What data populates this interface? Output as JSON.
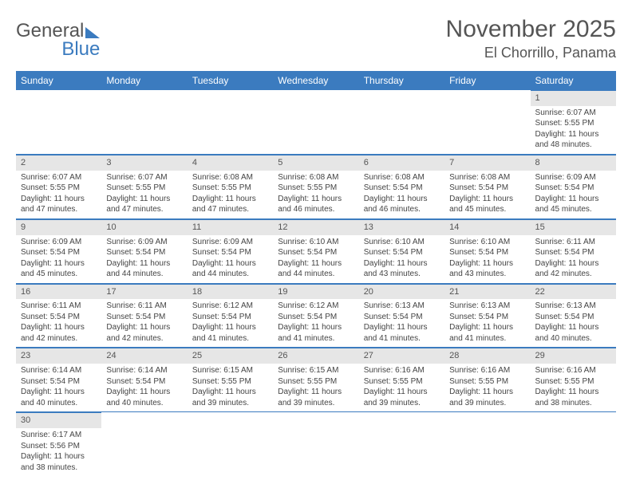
{
  "brand": {
    "part1": "General",
    "part2": "Blue"
  },
  "title": "November 2025",
  "location": "El Chorrillo, Panama",
  "headers": [
    "Sunday",
    "Monday",
    "Tuesday",
    "Wednesday",
    "Thursday",
    "Friday",
    "Saturday"
  ],
  "colors": {
    "header_bg": "#3b7bbf",
    "header_text": "#ffffff",
    "daynum_bg": "#e6e6e6",
    "border": "#3b7bbf",
    "text": "#444444"
  },
  "weeks": [
    [
      null,
      null,
      null,
      null,
      null,
      null,
      {
        "n": "1",
        "sr": "Sunrise: 6:07 AM",
        "ss": "Sunset: 5:55 PM",
        "d1": "Daylight: 11 hours",
        "d2": "and 48 minutes."
      }
    ],
    [
      {
        "n": "2",
        "sr": "Sunrise: 6:07 AM",
        "ss": "Sunset: 5:55 PM",
        "d1": "Daylight: 11 hours",
        "d2": "and 47 minutes."
      },
      {
        "n": "3",
        "sr": "Sunrise: 6:07 AM",
        "ss": "Sunset: 5:55 PM",
        "d1": "Daylight: 11 hours",
        "d2": "and 47 minutes."
      },
      {
        "n": "4",
        "sr": "Sunrise: 6:08 AM",
        "ss": "Sunset: 5:55 PM",
        "d1": "Daylight: 11 hours",
        "d2": "and 47 minutes."
      },
      {
        "n": "5",
        "sr": "Sunrise: 6:08 AM",
        "ss": "Sunset: 5:55 PM",
        "d1": "Daylight: 11 hours",
        "d2": "and 46 minutes."
      },
      {
        "n": "6",
        "sr": "Sunrise: 6:08 AM",
        "ss": "Sunset: 5:54 PM",
        "d1": "Daylight: 11 hours",
        "d2": "and 46 minutes."
      },
      {
        "n": "7",
        "sr": "Sunrise: 6:08 AM",
        "ss": "Sunset: 5:54 PM",
        "d1": "Daylight: 11 hours",
        "d2": "and 45 minutes."
      },
      {
        "n": "8",
        "sr": "Sunrise: 6:09 AM",
        "ss": "Sunset: 5:54 PM",
        "d1": "Daylight: 11 hours",
        "d2": "and 45 minutes."
      }
    ],
    [
      {
        "n": "9",
        "sr": "Sunrise: 6:09 AM",
        "ss": "Sunset: 5:54 PM",
        "d1": "Daylight: 11 hours",
        "d2": "and 45 minutes."
      },
      {
        "n": "10",
        "sr": "Sunrise: 6:09 AM",
        "ss": "Sunset: 5:54 PM",
        "d1": "Daylight: 11 hours",
        "d2": "and 44 minutes."
      },
      {
        "n": "11",
        "sr": "Sunrise: 6:09 AM",
        "ss": "Sunset: 5:54 PM",
        "d1": "Daylight: 11 hours",
        "d2": "and 44 minutes."
      },
      {
        "n": "12",
        "sr": "Sunrise: 6:10 AM",
        "ss": "Sunset: 5:54 PM",
        "d1": "Daylight: 11 hours",
        "d2": "and 44 minutes."
      },
      {
        "n": "13",
        "sr": "Sunrise: 6:10 AM",
        "ss": "Sunset: 5:54 PM",
        "d1": "Daylight: 11 hours",
        "d2": "and 43 minutes."
      },
      {
        "n": "14",
        "sr": "Sunrise: 6:10 AM",
        "ss": "Sunset: 5:54 PM",
        "d1": "Daylight: 11 hours",
        "d2": "and 43 minutes."
      },
      {
        "n": "15",
        "sr": "Sunrise: 6:11 AM",
        "ss": "Sunset: 5:54 PM",
        "d1": "Daylight: 11 hours",
        "d2": "and 42 minutes."
      }
    ],
    [
      {
        "n": "16",
        "sr": "Sunrise: 6:11 AM",
        "ss": "Sunset: 5:54 PM",
        "d1": "Daylight: 11 hours",
        "d2": "and 42 minutes."
      },
      {
        "n": "17",
        "sr": "Sunrise: 6:11 AM",
        "ss": "Sunset: 5:54 PM",
        "d1": "Daylight: 11 hours",
        "d2": "and 42 minutes."
      },
      {
        "n": "18",
        "sr": "Sunrise: 6:12 AM",
        "ss": "Sunset: 5:54 PM",
        "d1": "Daylight: 11 hours",
        "d2": "and 41 minutes."
      },
      {
        "n": "19",
        "sr": "Sunrise: 6:12 AM",
        "ss": "Sunset: 5:54 PM",
        "d1": "Daylight: 11 hours",
        "d2": "and 41 minutes."
      },
      {
        "n": "20",
        "sr": "Sunrise: 6:13 AM",
        "ss": "Sunset: 5:54 PM",
        "d1": "Daylight: 11 hours",
        "d2": "and 41 minutes."
      },
      {
        "n": "21",
        "sr": "Sunrise: 6:13 AM",
        "ss": "Sunset: 5:54 PM",
        "d1": "Daylight: 11 hours",
        "d2": "and 41 minutes."
      },
      {
        "n": "22",
        "sr": "Sunrise: 6:13 AM",
        "ss": "Sunset: 5:54 PM",
        "d1": "Daylight: 11 hours",
        "d2": "and 40 minutes."
      }
    ],
    [
      {
        "n": "23",
        "sr": "Sunrise: 6:14 AM",
        "ss": "Sunset: 5:54 PM",
        "d1": "Daylight: 11 hours",
        "d2": "and 40 minutes."
      },
      {
        "n": "24",
        "sr": "Sunrise: 6:14 AM",
        "ss": "Sunset: 5:54 PM",
        "d1": "Daylight: 11 hours",
        "d2": "and 40 minutes."
      },
      {
        "n": "25",
        "sr": "Sunrise: 6:15 AM",
        "ss": "Sunset: 5:55 PM",
        "d1": "Daylight: 11 hours",
        "d2": "and 39 minutes."
      },
      {
        "n": "26",
        "sr": "Sunrise: 6:15 AM",
        "ss": "Sunset: 5:55 PM",
        "d1": "Daylight: 11 hours",
        "d2": "and 39 minutes."
      },
      {
        "n": "27",
        "sr": "Sunrise: 6:16 AM",
        "ss": "Sunset: 5:55 PM",
        "d1": "Daylight: 11 hours",
        "d2": "and 39 minutes."
      },
      {
        "n": "28",
        "sr": "Sunrise: 6:16 AM",
        "ss": "Sunset: 5:55 PM",
        "d1": "Daylight: 11 hours",
        "d2": "and 39 minutes."
      },
      {
        "n": "29",
        "sr": "Sunrise: 6:16 AM",
        "ss": "Sunset: 5:55 PM",
        "d1": "Daylight: 11 hours",
        "d2": "and 38 minutes."
      }
    ],
    [
      {
        "n": "30",
        "sr": "Sunrise: 6:17 AM",
        "ss": "Sunset: 5:56 PM",
        "d1": "Daylight: 11 hours",
        "d2": "and 38 minutes."
      },
      null,
      null,
      null,
      null,
      null,
      null
    ]
  ]
}
